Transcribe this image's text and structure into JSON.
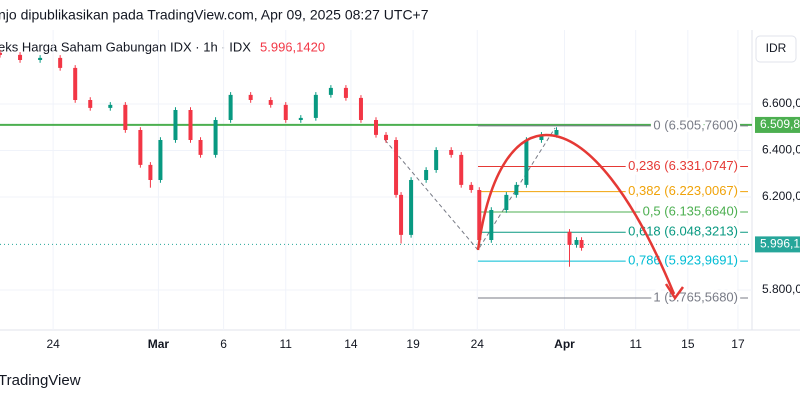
{
  "chart_data": {
    "type": "candlestick",
    "header": "njo dipublikasikan pada TradingView.com, Apr 09, 2025 08:27 UTC+7",
    "title": "eks Harga Saham Gabungan IDX · 1h · IDX",
    "last_price": {
      "value": 5996.142,
      "label": "5.996,1420"
    },
    "currency": "IDR",
    "footer": "TradingView",
    "x": [
      0,
      4,
      8,
      12,
      15,
      18,
      22,
      25,
      28,
      30,
      32,
      35,
      38,
      40,
      43,
      46,
      50,
      54,
      57,
      60,
      63,
      66,
      69,
      72,
      75,
      77,
      79,
      80,
      82,
      85,
      87,
      90,
      92,
      94,
      95.6,
      98,
      101,
      103,
      105,
      108,
      111,
      113.6,
      115,
      116
    ],
    "open": [
      6820,
      6811,
      6789,
      6798,
      6755,
      6617,
      6583,
      6596,
      6488,
      6338,
      6273,
      6445,
      6574,
      6445,
      6381,
      6531,
      6639,
      6617,
      6596,
      6531,
      6540,
      6639,
      6669,
      6626,
      6531,
      6467,
      6445,
      6209,
      6037,
      6273,
      6316,
      6402,
      6381,
      6252,
      6230,
      6015,
      6144,
      6209,
      6252,
      6445,
      6467,
      6050,
      5994,
      6015
    ],
    "close": [
      6811,
      6789,
      6798,
      6755,
      6617,
      6583,
      6596,
      6488,
      6338,
      6273,
      6445,
      6574,
      6445,
      6381,
      6531,
      6639,
      6617,
      6596,
      6531,
      6540,
      6639,
      6669,
      6626,
      6531,
      6467,
      6445,
      6209,
      6037,
      6273,
      6316,
      6402,
      6381,
      6252,
      6230,
      6015,
      6144,
      6209,
      6252,
      6445,
      6467,
      6488,
      5994,
      6015,
      5981
    ],
    "high": [
      6832,
      6823,
      6810,
      6810,
      6767,
      6629,
      6608,
      6608,
      6500,
      6350,
      6457,
      6586,
      6586,
      6457,
      6543,
      6651,
      6651,
      6629,
      6608,
      6552,
      6651,
      6681,
      6681,
      6638,
      6543,
      6479,
      6457,
      6221,
      6285,
      6328,
      6414,
      6414,
      6393,
      6264,
      6242,
      6156,
      6221,
      6264,
      6457,
      6479,
      6500,
      6062,
      6027,
      6027
    ],
    "low": [
      6799,
      6777,
      6777,
      6743,
      6605,
      6571,
      6571,
      6476,
      6326,
      6240,
      6261,
      6433,
      6433,
      6369,
      6369,
      6519,
      6605,
      6584,
      6519,
      6519,
      6528,
      6627,
      6614,
      6519,
      6455,
      6433,
      6197,
      6000,
      6025,
      6261,
      6304,
      6369,
      6240,
      6218,
      6003,
      6003,
      6132,
      6197,
      6240,
      6433,
      6455,
      5900,
      5982,
      5969
    ],
    "up_color": "#089981",
    "down_color": "#f23645",
    "xlim": [
      0,
      150
    ],
    "xticks": [
      {
        "value": 10.6,
        "label": "24"
      },
      {
        "value": 31.6,
        "label": "Mar"
      },
      {
        "value": 44.6,
        "label": "6"
      },
      {
        "value": 57,
        "label": "11"
      },
      {
        "value": 70,
        "label": "14"
      },
      {
        "value": 82.4,
        "label": "19"
      },
      {
        "value": 95.2,
        "label": "24"
      },
      {
        "value": 112.6,
        "label": "Apr"
      },
      {
        "value": 126.8,
        "label": "11"
      },
      {
        "value": 137.2,
        "label": "15"
      },
      {
        "value": 147.2,
        "label": "17"
      }
    ],
    "ylim": [
      5628,
      6875
    ],
    "yticks": [
      {
        "value": 5800,
        "label": "5.800,000"
      },
      {
        "value": 6200,
        "label": "6.200,000"
      },
      {
        "value": 6400,
        "label": "6.400,000"
      },
      {
        "value": 6600,
        "label": "6.600,000"
      }
    ],
    "grid": true,
    "horizontal_line": {
      "value": 6509.8,
      "label": "6.509,8",
      "color": "#4caf50"
    },
    "last_price_line": {
      "value": 5996.1,
      "label": "5.996,1",
      "color": "#26a69a"
    },
    "fib_levels": [
      {
        "price": 6505.76,
        "label": "0 (6.505,7600)",
        "color": "#787b86"
      },
      {
        "price": 6331.0747,
        "label": "0,236 (6.331,0747)",
        "color": "#e53935"
      },
      {
        "price": 6223.0067,
        "label": "0,382 (6.223,0067)",
        "color": "#f0a30a"
      },
      {
        "price": 6135.664,
        "label": "0,5 (6.135,6640)",
        "color": "#4caf50"
      },
      {
        "price": 6048.3213,
        "label": "0,618 (6.048,3213)",
        "color": "#089981"
      },
      {
        "price": 5923.9691,
        "label": "0,786 (5.923,9691)",
        "color": "#00bcd4"
      },
      {
        "price": 5765.568,
        "label": "1 (5.765,5680)",
        "color": "#787b86"
      }
    ]
  }
}
